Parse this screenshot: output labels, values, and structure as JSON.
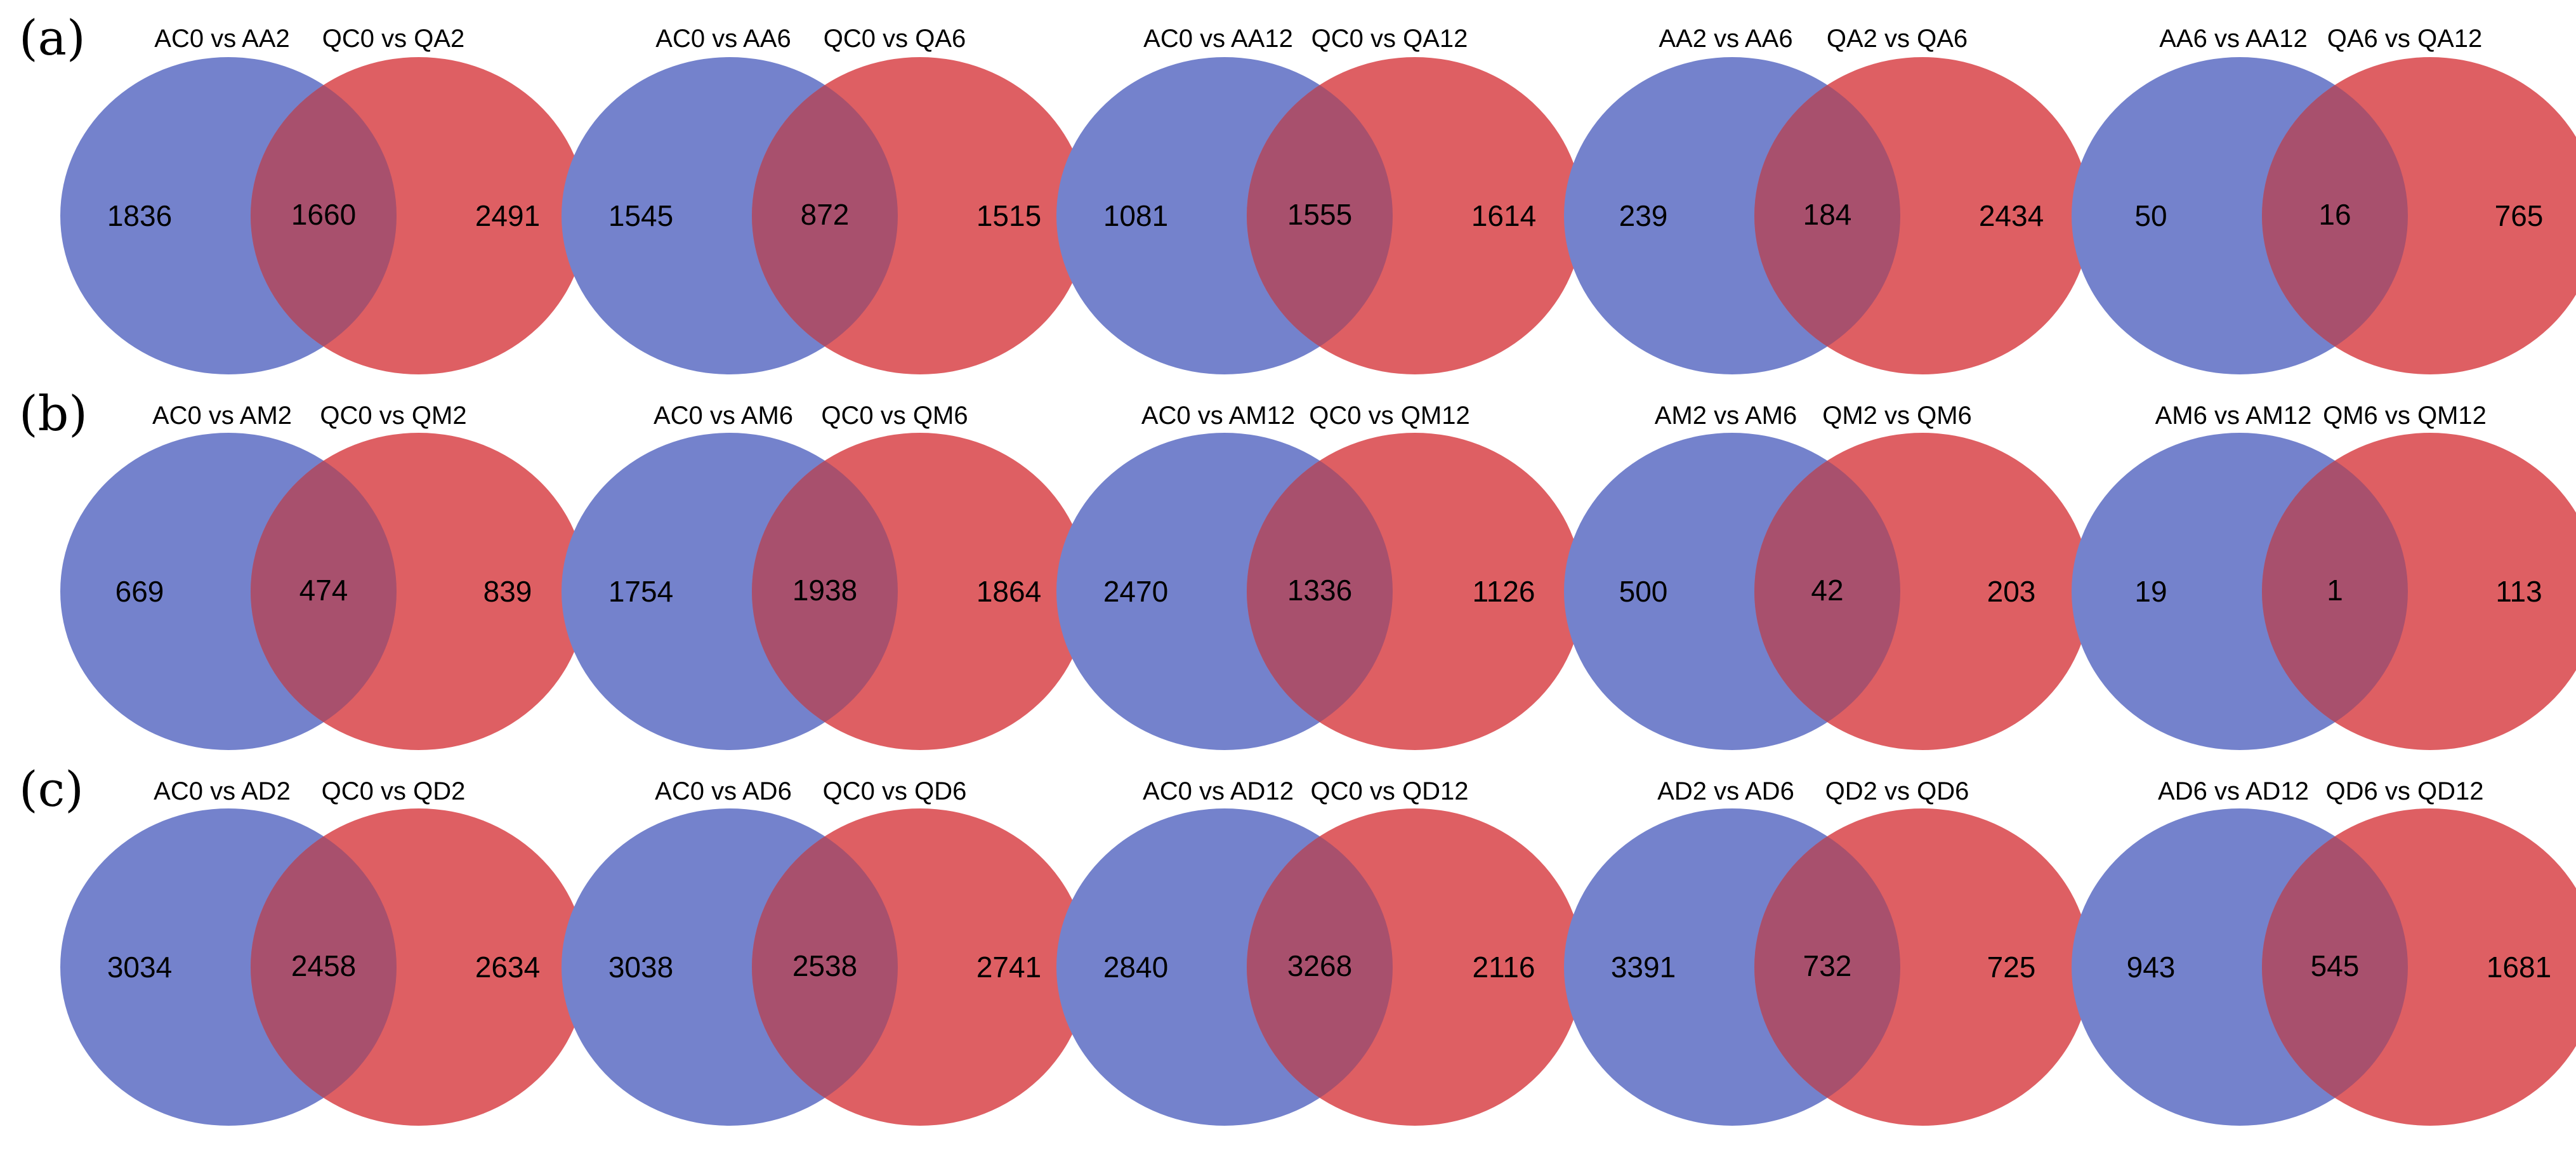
{
  "colors": {
    "left_set": "#7482cc",
    "right_set": "#de5f63",
    "overlap": "#a8506d",
    "text": "#000000"
  },
  "rows": [
    {
      "panel": "(a)",
      "diagrams": [
        {
          "left_label": "AC0 vs AA2",
          "right_label": "QC0 vs QA2",
          "left_only": "1836",
          "shared": "1660",
          "right_only": "2491"
        },
        {
          "left_label": "AC0 vs AA6",
          "right_label": "QC0 vs QA6",
          "left_only": "1545",
          "shared": "872",
          "right_only": "1515"
        },
        {
          "left_label": "AC0 vs AA12",
          "right_label": "QC0 vs QA12",
          "left_only": "1081",
          "shared": "1555",
          "right_only": "1614"
        },
        {
          "left_label": "AA2 vs AA6",
          "right_label": "QA2 vs QA6",
          "left_only": "239",
          "shared": "184",
          "right_only": "2434"
        },
        {
          "left_label": "AA6 vs AA12",
          "right_label": "QA6 vs QA12",
          "left_only": "50",
          "shared": "16",
          "right_only": "765"
        }
      ]
    },
    {
      "panel": "(b)",
      "diagrams": [
        {
          "left_label": "AC0 vs AM2",
          "right_label": "QC0 vs QM2",
          "left_only": "669",
          "shared": "474",
          "right_only": "839"
        },
        {
          "left_label": "AC0 vs AM6",
          "right_label": "QC0 vs QM6",
          "left_only": "1754",
          "shared": "1938",
          "right_only": "1864"
        },
        {
          "left_label": "AC0 vs AM12",
          "right_label": "QC0 vs QM12",
          "left_only": "2470",
          "shared": "1336",
          "right_only": "1126"
        },
        {
          "left_label": "AM2 vs AM6",
          "right_label": "QM2 vs QM6",
          "left_only": "500",
          "shared": "42",
          "right_only": "203"
        },
        {
          "left_label": "AM6 vs AM12",
          "right_label": "QM6 vs QM12",
          "left_only": "19",
          "shared": "1",
          "right_only": "113"
        }
      ]
    },
    {
      "panel": "(c)",
      "diagrams": [
        {
          "left_label": "AC0 vs AD2",
          "right_label": "QC0 vs QD2",
          "left_only": "3034",
          "shared": "2458",
          "right_only": "2634"
        },
        {
          "left_label": "AC0 vs AD6",
          "right_label": "QC0 vs QD6",
          "left_only": "3038",
          "shared": "2538",
          "right_only": "2741"
        },
        {
          "left_label": "AC0 vs AD12",
          "right_label": "QC0 vs QD12",
          "left_only": "2840",
          "shared": "3268",
          "right_only": "2116"
        },
        {
          "left_label": "AD2 vs AD6",
          "right_label": "QD2 vs QD6",
          "left_only": "3391",
          "shared": "732",
          "right_only": "725"
        },
        {
          "left_label": "AD6 vs AD12",
          "right_label": "QD6 vs QD12",
          "left_only": "943",
          "shared": "545",
          "right_only": "1681"
        }
      ]
    }
  ]
}
